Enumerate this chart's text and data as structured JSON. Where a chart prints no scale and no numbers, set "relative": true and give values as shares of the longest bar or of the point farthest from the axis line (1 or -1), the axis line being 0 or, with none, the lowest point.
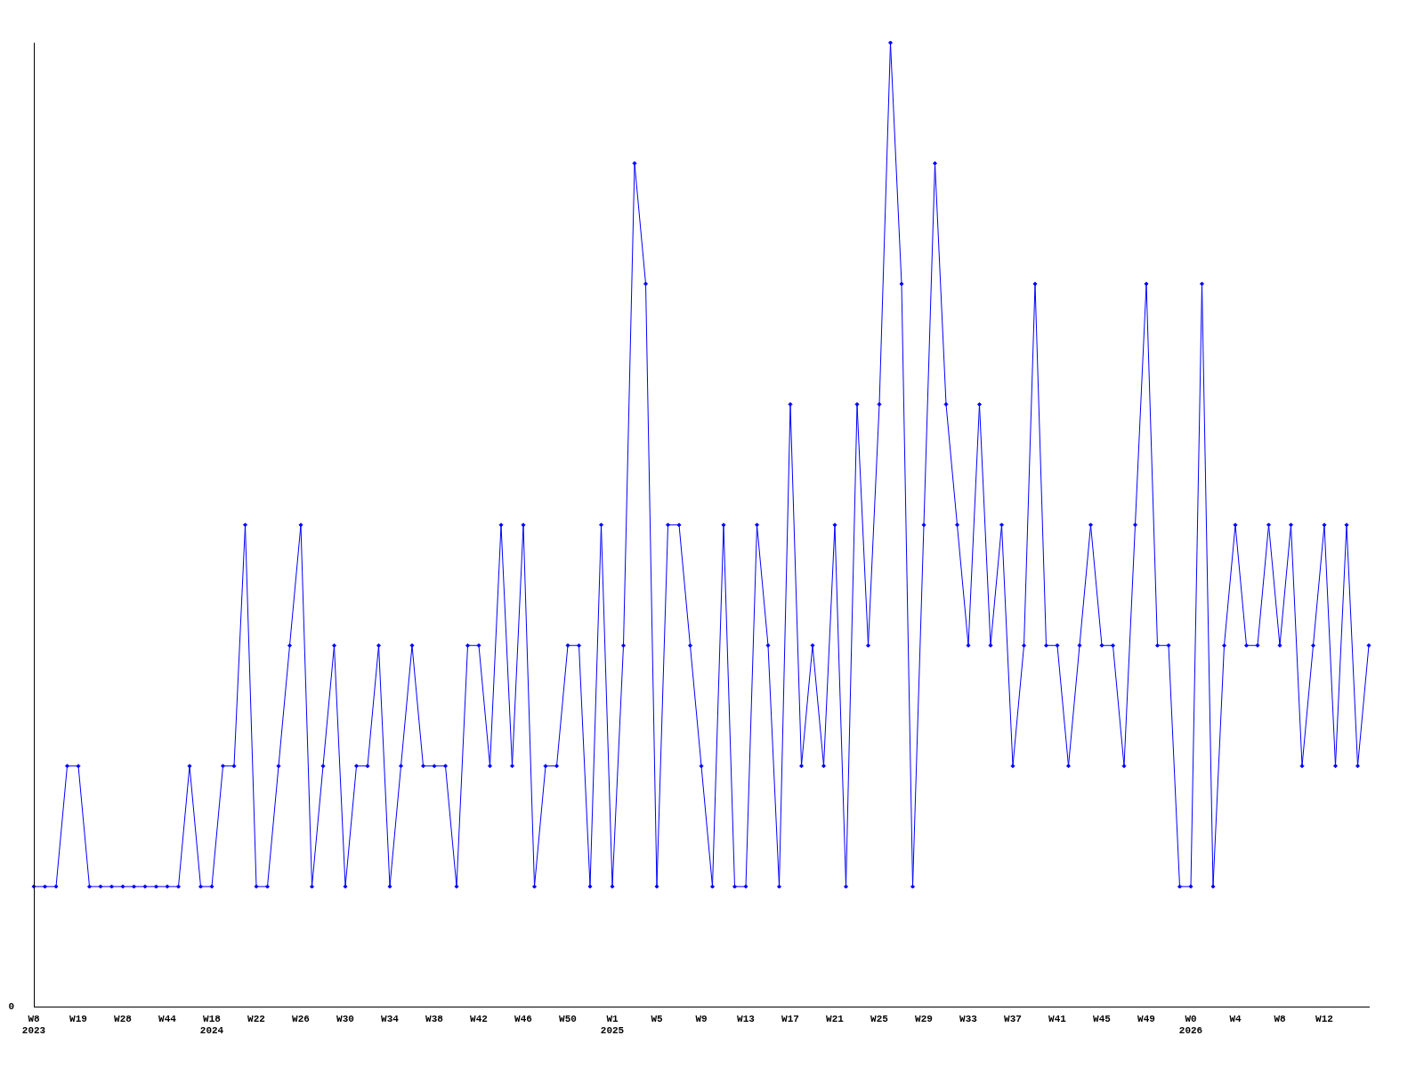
{
  "chart_data": {
    "type": "line",
    "relative": true,
    "grid": false,
    "legend": false,
    "marker": "diamond",
    "line_style": "solid",
    "annotations": [
      "0"
    ],
    "categories": [
      "W8\n2023",
      null,
      null,
      null,
      "W19",
      null,
      null,
      null,
      "W28",
      null,
      null,
      null,
      "W44",
      null,
      null,
      null,
      "W18\n2024",
      null,
      null,
      null,
      "W22",
      null,
      null,
      null,
      "W26",
      null,
      null,
      null,
      "W30",
      null,
      null,
      null,
      "W34",
      null,
      null,
      null,
      "W38",
      null,
      null,
      null,
      "W42",
      null,
      null,
      null,
      "W46",
      null,
      null,
      null,
      "W50",
      null,
      null,
      null,
      "W1\n2025",
      null,
      null,
      null,
      "W5",
      null,
      null,
      null,
      "W9",
      null,
      null,
      null,
      "W13",
      null,
      null,
      null,
      "W17",
      null,
      null,
      null,
      "W21",
      null,
      null,
      null,
      "W25",
      null,
      null,
      null,
      "W29",
      null,
      null,
      null,
      "W33",
      null,
      null,
      null,
      "W37",
      null,
      null,
      null,
      "W41",
      null,
      null,
      null,
      "W45",
      null,
      null,
      null,
      "W49",
      null,
      null,
      null,
      "W0\n2026",
      null,
      null,
      null,
      "W4",
      null,
      null,
      null,
      "W8",
      null,
      null,
      null,
      "W12",
      null,
      null,
      null,
      null
    ],
    "series": [
      {
        "color": "#0000ff",
        "values": [
          0.125,
          0.125,
          0.125,
          0.25,
          0.25,
          0.125,
          0.125,
          0.125,
          0.125,
          0.125,
          0.125,
          0.125,
          0.125,
          0.125,
          0.25,
          0.125,
          0.125,
          0.25,
          0.25,
          0.5,
          0.125,
          0.125,
          0.25,
          0.375,
          0.5,
          0.125,
          0.25,
          0.375,
          0.125,
          0.25,
          0.25,
          0.375,
          0.125,
          0.25,
          0.375,
          0.25,
          0.25,
          0.25,
          0.125,
          0.375,
          0.375,
          0.25,
          0.5,
          0.25,
          0.5,
          0.125,
          0.25,
          0.25,
          0.375,
          0.375,
          0.125,
          0.5,
          0.125,
          0.375,
          0.875,
          0.75,
          0.125,
          0.5,
          0.5,
          0.375,
          0.25,
          0.125,
          0.5,
          0.125,
          0.125,
          0.5,
          0.375,
          0.125,
          0.625,
          0.25,
          0.375,
          0.25,
          0.5,
          0.125,
          0.625,
          0.375,
          0.625,
          1,
          0.75,
          0.125,
          0.5,
          0.875,
          0.625,
          0.5,
          0.375,
          0.625,
          0.375,
          0.5,
          0.25,
          0.375,
          0.75,
          0.375,
          0.375,
          0.25,
          0.375,
          0.5,
          0.375,
          0.375,
          0.25,
          0.5,
          0.75,
          0.375,
          0.375,
          0.125,
          0.125,
          0.75,
          0.125,
          0.375,
          0.5,
          0.375,
          0.375,
          0.5,
          0.375,
          0.5,
          0.25,
          0.375,
          0.5,
          0.25,
          0.5,
          0.25,
          0.375
        ]
      }
    ]
  }
}
